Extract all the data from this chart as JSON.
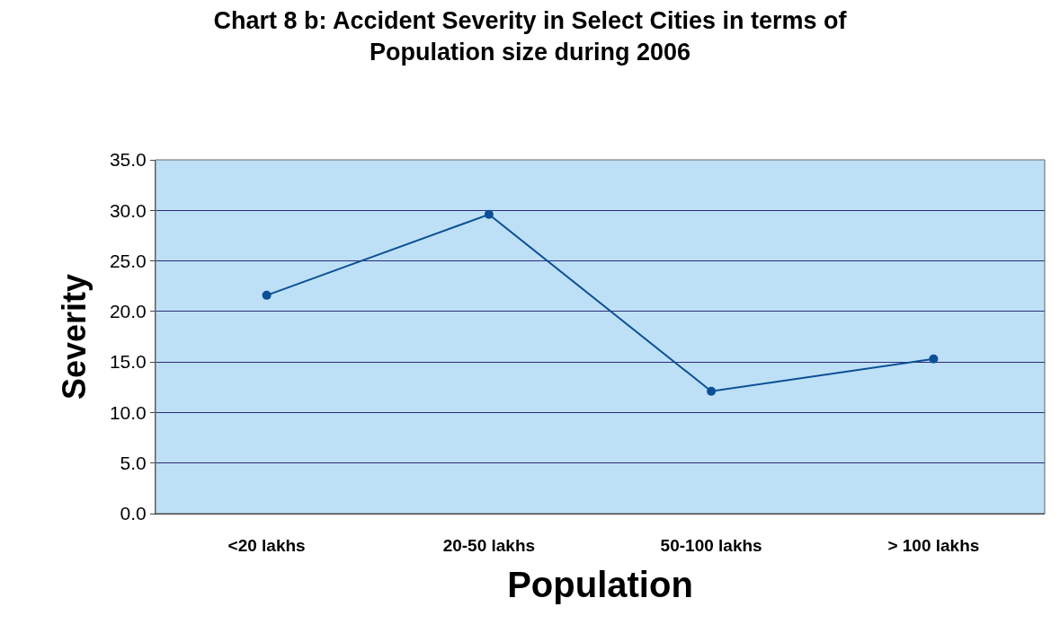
{
  "chart_data": {
    "type": "line",
    "title": "Chart 8 b: Accident Severity in Select Cities in terms of\nPopulation size during 2006",
    "xlabel": "Population",
    "ylabel": "Severity",
    "categories": [
      "<20 lakhs",
      "20-50 lakhs",
      "50-100 lakhs",
      "> 100 lakhs"
    ],
    "series": [
      {
        "color": "#0b4f94",
        "values": [
          21.6,
          29.6,
          12.1,
          15.3
        ]
      }
    ],
    "ylim": [
      0,
      35
    ],
    "yticks": [
      {
        "value": 0,
        "label": "0.0"
      },
      {
        "value": 5,
        "label": "5.0"
      },
      {
        "value": 10,
        "label": "10.0"
      },
      {
        "value": 15,
        "label": "15.0"
      },
      {
        "value": 20,
        "label": "20.0"
      },
      {
        "value": 25,
        "label": "25.0"
      },
      {
        "value": 30,
        "label": "30.0"
      },
      {
        "value": 35,
        "label": "35.0"
      }
    ],
    "grid": "y",
    "marker": "circle",
    "line_style": "solid"
  }
}
